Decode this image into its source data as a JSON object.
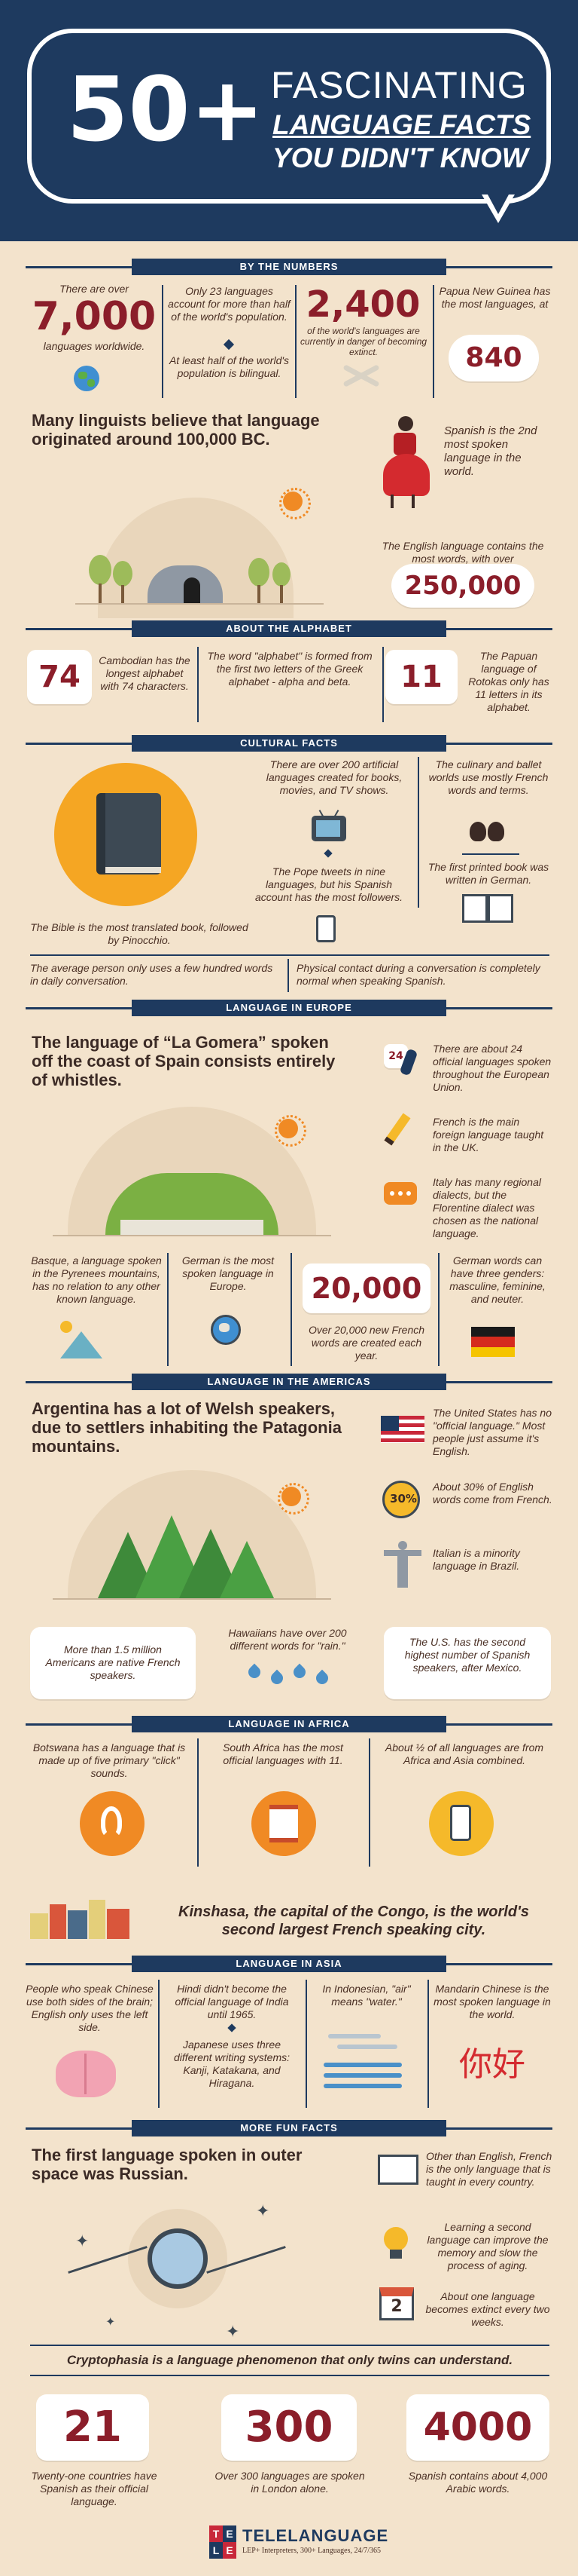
{
  "header": {
    "big": "50+",
    "line1": "FASCINATING",
    "line2": "LANGUAGE FACTS",
    "line3": "YOU DIDN'T KNOW"
  },
  "by_numbers": {
    "title": "BY THE NUMBERS",
    "f1_top": "There are over",
    "f1_num": "7,000",
    "f1_bottom": "languages worldwide.",
    "f2a": "Only 23 languages account for more than half of the world's population.",
    "f2b": "At least half of the world's population is bilingual.",
    "f3_num": "2,400",
    "f3_text": "of the world's languages are currently in danger of becoming extinct.",
    "f4_text": "Papua New Guinea has the most languages, at",
    "f4_num": "840",
    "lead": "Many linguists believe that language originated around 100,000 BC.",
    "spanish": "Spanish is the 2nd most spoken language in the world.",
    "english": "The English language contains the most words, with over",
    "english_num": "250,000"
  },
  "alphabet": {
    "title": "ABOUT THE ALPHABET",
    "n1": "74",
    "t1": "Cambodian has the longest alphabet with 74 characters.",
    "t2": "The word \"alphabet\" is formed from the first two letters of the Greek alphabet - alpha and beta.",
    "n3": "11",
    "t3": "The Papuan language of Rotokas only has 11 letters in its alphabet."
  },
  "cultural": {
    "title": "CULTURAL FACTS",
    "c1": "There are over 200 artificial languages created for books, movies, and TV shows.",
    "c2": "The culinary and ballet worlds use mostly French words and terms.",
    "c3": "The Pope tweets in nine languages, but his Spanish account has the most followers.",
    "c4": "The first printed book was written in German.",
    "c5": "The Bible is the most translated book, followed by Pinocchio.",
    "c6": "The average person only uses a few hundred words in daily conversation.",
    "c7": "Physical contact during a conversation is completely normal when speaking Spanish."
  },
  "europe": {
    "title": "LANGUAGE IN EUROPE",
    "lead": "The language of “La Gomera” spoken off the coast of Spain consists entirely of whistles.",
    "badge": "24",
    "e1": "There are about 24 official languages spoken throughout the European Union.",
    "e2": "French is the main foreign language taught in the UK.",
    "e3": "Italy has many regional dialects, but the Florentine dialect was chosen as the national language.",
    "e4": "Basque, a language spoken in the Pyrenees mountains, has no relation to any other known language.",
    "e5": "German is the most spoken language in Europe.",
    "e6_num": "20,000",
    "e6": "Over 20,000 new French words are created each year.",
    "e7": "German words can have three genders: masculine, feminine, and neuter."
  },
  "americas": {
    "title": "LANGUAGE IN THE AMERICAS",
    "lead": "Argentina has a lot of Welsh speakers, due to settlers inhabiting the Patagonia mountains.",
    "a1": "The United States has no \"official language.\" Most people just assume it's English.",
    "pct": "30%",
    "a2": "About 30% of English words come from French.",
    "a3": "Italian is a minority language in Brazil.",
    "a4": "More than 1.5 million Americans are native French speakers.",
    "a5": "Hawaiians have over 200 different words for \"rain.\"",
    "a6": "The U.S. has the second highest number of Spanish speakers, after Mexico."
  },
  "africa": {
    "title": "LANGUAGE IN AFRICA",
    "f1": "Botswana has a language that is made up of five primary \"click\" sounds.",
    "f2": "South Africa has the most official languages with 11.",
    "f3": "About ½ of all languages are from Africa and Asia combined.",
    "lead": "Kinshasa, the capital of the Congo, is the world's second largest French speaking city."
  },
  "asia": {
    "title": "LANGUAGE IN ASIA",
    "f1": "People who speak Chinese use both sides of the brain; English only uses the left side.",
    "f2": "Hindi didn't become the official language of India until 1965.",
    "f3": "Japanese uses three different writing systems: Kanji, Katakana, and Hiragana.",
    "f4": "In Indonesian, \"air\" means \"water.\"",
    "f5": "Mandarin Chinese is the most spoken language in the world.",
    "nihao": "你好"
  },
  "fun": {
    "title": "MORE FUN FACTS",
    "lead": "The first language spoken in outer space was Russian.",
    "f1": "Other than English, French is the only language that is taught in every country.",
    "f2": "Learning a second language can improve the memory and slow the process of aging.",
    "f3": "About one language becomes extinct every two weeks.",
    "cal": "2",
    "crypto": "Cryptophasia is a language phenomenon that only twins can understand.",
    "n1": "21",
    "t1": "Twenty-one countries have Spanish as their official language.",
    "n2": "300",
    "t2": "Over 300 languages are spoken in London alone.",
    "n3": "4000",
    "t3": "Spanish contains about 4,000 Arabic words."
  },
  "footer": {
    "logo_letters": [
      "T",
      "E",
      "L",
      "E"
    ],
    "brand": "TELELANGUAGE",
    "tagline": "LEP+ Interpreters, 300+ Languages, 24/7/365"
  },
  "colors": {
    "navy": "#1e3a5f",
    "maroon": "#8b1e2a",
    "cream": "#f3e3cc",
    "orange": "#f08a24"
  }
}
